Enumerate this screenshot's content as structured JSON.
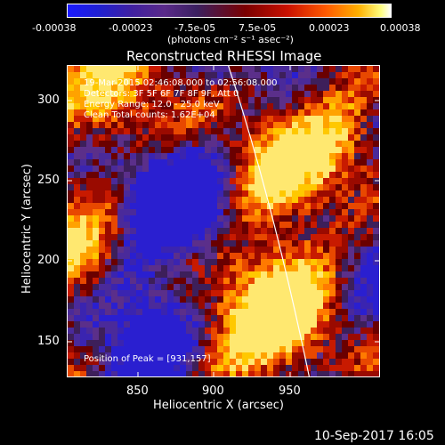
{
  "colorbar": {
    "tick_labels": [
      "-0.00038",
      "-0.00023",
      "-7.5e-05",
      "7.5e-05",
      "0.00023",
      "0.00038"
    ],
    "unit_text": "(photons cm⁻² s⁻¹ asec⁻²)"
  },
  "plot": {
    "title": "Reconstructed RHESSI Image",
    "info_lines": [
      "19-Mar-2015 02:46:08.000 to 02:56:08.000",
      "Detectors: 3F 5F 6F 7F 8F 9F, Att 0",
      "Energy Range: 12.0 - 25.0 keV",
      "Clean    Total counts: 1.62E+04"
    ],
    "peak_text": "Position of Peak = [931,157]",
    "xlabel": "Heliocentric X (arcsec)",
    "ylabel": "Heliocentric Y (arcsec)",
    "x_ticks": [
      "850",
      "900",
      "950"
    ],
    "y_ticks": [
      "300",
      "250",
      "200",
      "150"
    ]
  },
  "footer": {
    "timestamp": "10-Sep-2017 16:05"
  },
  "colors": {
    "background": "#000000",
    "limb_line": "#ffffff"
  }
}
